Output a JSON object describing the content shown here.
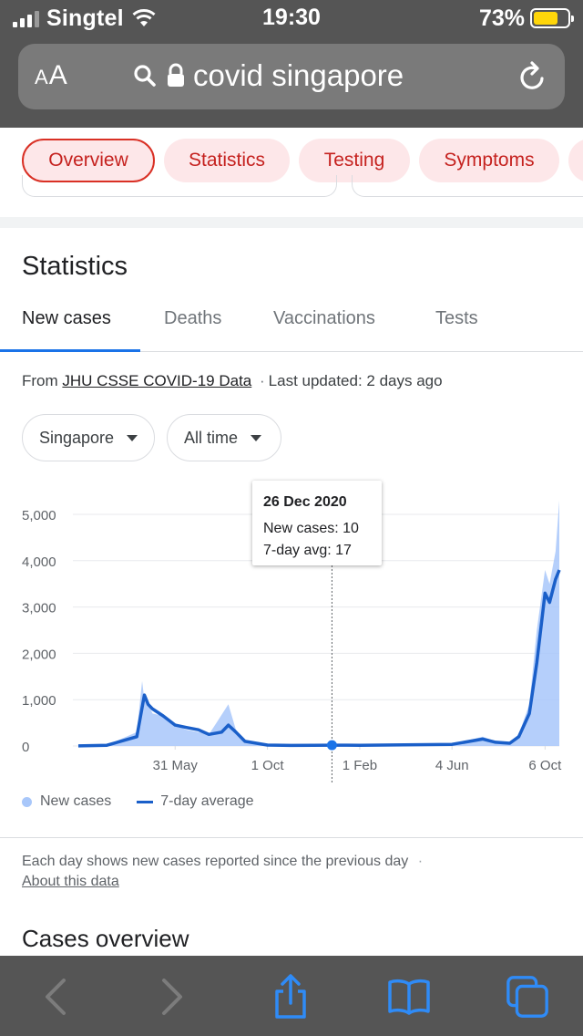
{
  "status_bar": {
    "carrier": "Singtel",
    "time": "19:30",
    "battery_percent": "73%",
    "battery_level": 0.73,
    "battery_color": "#ffd60a"
  },
  "url_bar": {
    "text_size_label": "AA",
    "query": "covid singapore"
  },
  "chips": [
    "Overview",
    "Statistics",
    "Testing",
    "Symptoms"
  ],
  "section_title": "Statistics",
  "tabs": [
    "New cases",
    "Deaths",
    "Vaccinations",
    "Tests"
  ],
  "source": {
    "prefix": "From",
    "link": "JHU CSSE COVID-19 Data",
    "separator": "·",
    "updated": "Last updated: 2 days ago"
  },
  "filters": {
    "region": "Singapore",
    "range": "All time"
  },
  "tooltip": {
    "date": "26 Dec 2020",
    "new_cases": "New cases: 10",
    "avg": "7-day avg: 17"
  },
  "legend": {
    "new_cases": "New cases",
    "avg": "7-day average"
  },
  "note": {
    "text": "Each day shows new cases reported since the previous day",
    "separator": "·",
    "link": "About this data"
  },
  "cases_overview_title": "Cases overview",
  "colors": {
    "accent": "#1a73e8",
    "chip_bg": "#fde7e9",
    "chip_text": "#c5221f",
    "bar_fill": "#a8c7fa",
    "avg_line": "#1a5fc9"
  },
  "chart_data": {
    "type": "area",
    "title": "",
    "xlabel": "",
    "ylabel": "",
    "x_ticks": [
      "31 May",
      "1 Oct",
      "1 Feb",
      "4 Jun",
      "6 Oct"
    ],
    "y_ticks": [
      "0",
      "1,000",
      "2,000",
      "3,000",
      "4,000",
      "5,000"
    ],
    "ylim": [
      0,
      5300
    ],
    "grid": true,
    "legend_position": "bottom-left",
    "highlight": {
      "x": "26 Dec 2020",
      "new_cases": 10,
      "avg_7day": 17
    },
    "series": [
      {
        "name": "New cases",
        "x": [
          "23 Jan 2020",
          "1 Mar 2020",
          "10 Apr 2020",
          "17 Apr 2020",
          "20 Apr 2020",
          "25 Apr 2020",
          "1 May 2020",
          "15 May 2020",
          "31 May 2020",
          "15 Jun 2020",
          "1 Jul 2020",
          "15 Jul 2020",
          "25 Jul 2020",
          "10 Aug 2020",
          "20 Aug 2020",
          "1 Sep 2020",
          "1 Oct 2020",
          "1 Nov 2020",
          "1 Dec 2020",
          "26 Dec 2020",
          "1 Feb 2021",
          "1 Apr 2021",
          "4 Jun 2021",
          "15 Jul 2021",
          "1 Aug 2021",
          "20 Aug 2021",
          "1 Sep 2021",
          "15 Sep 2021",
          "25 Sep 2021",
          "6 Oct 2021",
          "12 Oct 2021",
          "20 Oct 2021",
          "25 Oct 2021"
        ],
        "values": [
          2,
          20,
          300,
          1400,
          1000,
          900,
          700,
          650,
          450,
          350,
          300,
          250,
          500,
          900,
          350,
          100,
          20,
          10,
          10,
          10,
          15,
          30,
          40,
          200,
          100,
          80,
          250,
          900,
          2500,
          3800,
          3500,
          4200,
          5300
        ]
      },
      {
        "name": "7-day average",
        "x": [
          "23 Jan 2020",
          "1 Mar 2020",
          "10 Apr 2020",
          "20 Apr 2020",
          "25 Apr 2020",
          "1 May 2020",
          "15 May 2020",
          "31 May 2020",
          "15 Jun 2020",
          "1 Jul 2020",
          "15 Jul 2020",
          "1 Aug 2020",
          "10 Aug 2020",
          "20 Aug 2020",
          "1 Sep 2020",
          "1 Oct 2020",
          "1 Nov 2020",
          "1 Dec 2020",
          "26 Dec 2020",
          "1 Feb 2021",
          "1 Apr 2021",
          "4 Jun 2021",
          "15 Jul 2021",
          "1 Aug 2021",
          "20 Aug 2021",
          "1 Sep 2021",
          "15 Sep 2021",
          "25 Sep 2021",
          "6 Oct 2021",
          "12 Oct 2021",
          "20 Oct 2021",
          "25 Oct 2021"
        ],
        "values": [
          2,
          15,
          200,
          1100,
          900,
          800,
          650,
          450,
          400,
          350,
          250,
          300,
          450,
          300,
          100,
          20,
          12,
          14,
          17,
          15,
          25,
          35,
          150,
          80,
          60,
          200,
          700,
          1800,
          3300,
          3100,
          3600,
          3800
        ]
      }
    ]
  }
}
